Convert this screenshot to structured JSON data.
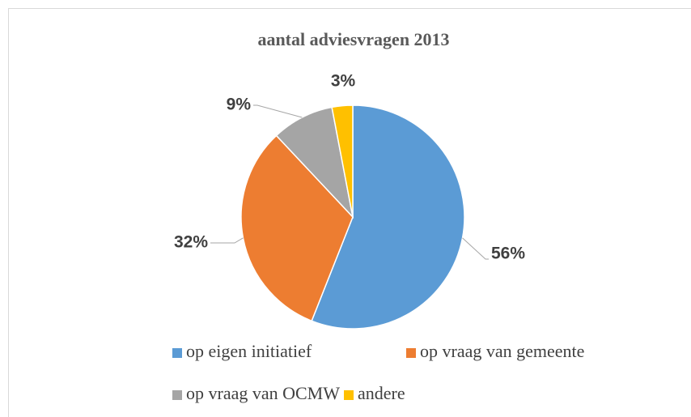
{
  "chart_data": {
    "type": "pie",
    "title": "aantal adviesvragen 2013",
    "categories": [
      "op eigen initiatief",
      "op vraag van gemeente",
      "op vraag van OCMW",
      "andere"
    ],
    "values": [
      56,
      32,
      9,
      3
    ],
    "value_labels": [
      "56%",
      "32%",
      "9%",
      "3%"
    ],
    "colors": [
      "#5b9bd5",
      "#ed7d31",
      "#a5a5a5",
      "#ffc000"
    ]
  }
}
